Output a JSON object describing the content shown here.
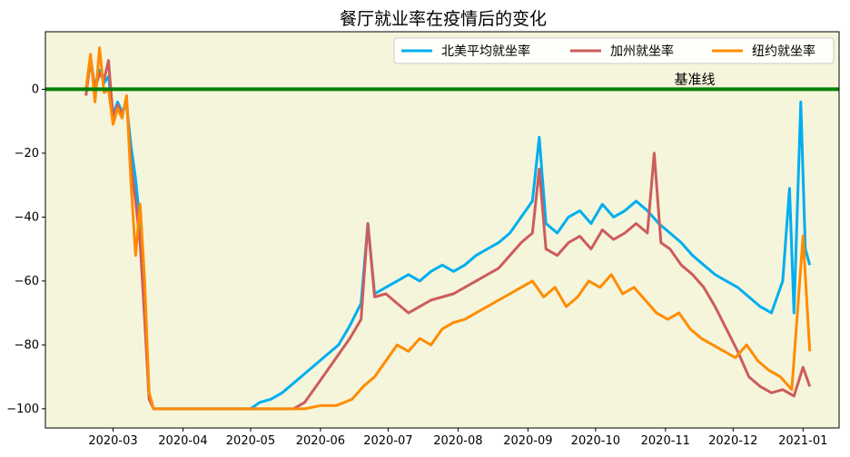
{
  "chart_data": {
    "type": "line",
    "title": "餐厅就业率在疫情后的变化",
    "xlabel": "",
    "ylabel": "",
    "x_range": [
      "2020-01-31",
      "2021-01-17"
    ],
    "ylim": [
      -106,
      18
    ],
    "yticks": [
      0,
      -20,
      -40,
      -60,
      -80,
      -100
    ],
    "ytick_labels": [
      "0",
      "−20",
      "−40",
      "−60",
      "−80",
      "−100"
    ],
    "xticks": [
      "2020-03-01",
      "2020-04-01",
      "2020-05-01",
      "2020-06-01",
      "2020-07-01",
      "2020-08-01",
      "2020-09-01",
      "2020-10-01",
      "2020-11-01",
      "2020-12-01",
      "2021-01-01"
    ],
    "xtick_labels": [
      "2020-03",
      "2020-04",
      "2020-05",
      "2020-06",
      "2020-07",
      "2020-08",
      "2020-09",
      "2020-10",
      "2020-11",
      "2020-12",
      "2021-01"
    ],
    "background": "#f5f5dc",
    "grid": false,
    "legend_position": "top-right",
    "baseline": {
      "value": 0,
      "label": "基准线",
      "color": "#008000"
    },
    "series": [
      {
        "name": "北美平均就坐率",
        "color": "#00aeef",
        "points": [
          [
            "2020-02-18",
            0
          ],
          [
            "2020-02-20",
            8
          ],
          [
            "2020-02-22",
            1
          ],
          [
            "2020-02-24",
            6
          ],
          [
            "2020-02-26",
            2
          ],
          [
            "2020-02-28",
            4
          ],
          [
            "2020-03-01",
            -8
          ],
          [
            "2020-03-03",
            -4
          ],
          [
            "2020-03-05",
            -7
          ],
          [
            "2020-03-07",
            -5
          ],
          [
            "2020-03-09",
            -18
          ],
          [
            "2020-03-11",
            -28
          ],
          [
            "2020-03-13",
            -42
          ],
          [
            "2020-03-15",
            -70
          ],
          [
            "2020-03-17",
            -96
          ],
          [
            "2020-03-19",
            -100
          ],
          [
            "2020-04-15",
            -100
          ],
          [
            "2020-05-01",
            -100
          ],
          [
            "2020-05-05",
            -98
          ],
          [
            "2020-05-10",
            -97
          ],
          [
            "2020-05-15",
            -95
          ],
          [
            "2020-05-20",
            -92
          ],
          [
            "2020-05-25",
            -89
          ],
          [
            "2020-05-30",
            -86
          ],
          [
            "2020-06-04",
            -83
          ],
          [
            "2020-06-09",
            -80
          ],
          [
            "2020-06-14",
            -74
          ],
          [
            "2020-06-19",
            -67
          ],
          [
            "2020-06-22",
            -42
          ],
          [
            "2020-06-25",
            -64
          ],
          [
            "2020-06-30",
            -62
          ],
          [
            "2020-07-05",
            -60
          ],
          [
            "2020-07-10",
            -58
          ],
          [
            "2020-07-15",
            -60
          ],
          [
            "2020-07-20",
            -57
          ],
          [
            "2020-07-25",
            -55
          ],
          [
            "2020-07-30",
            -57
          ],
          [
            "2020-08-04",
            -55
          ],
          [
            "2020-08-09",
            -52
          ],
          [
            "2020-08-14",
            -50
          ],
          [
            "2020-08-19",
            -48
          ],
          [
            "2020-08-24",
            -45
          ],
          [
            "2020-08-29",
            -40
          ],
          [
            "2020-09-03",
            -35
          ],
          [
            "2020-09-06",
            -15
          ],
          [
            "2020-09-09",
            -42
          ],
          [
            "2020-09-14",
            -45
          ],
          [
            "2020-09-19",
            -40
          ],
          [
            "2020-09-24",
            -38
          ],
          [
            "2020-09-29",
            -42
          ],
          [
            "2020-10-04",
            -36
          ],
          [
            "2020-10-09",
            -40
          ],
          [
            "2020-10-14",
            -38
          ],
          [
            "2020-10-19",
            -35
          ],
          [
            "2020-10-24",
            -38
          ],
          [
            "2020-10-29",
            -42
          ],
          [
            "2020-11-03",
            -45
          ],
          [
            "2020-11-08",
            -48
          ],
          [
            "2020-11-13",
            -52
          ],
          [
            "2020-11-18",
            -55
          ],
          [
            "2020-11-23",
            -58
          ],
          [
            "2020-11-28",
            -60
          ],
          [
            "2020-12-03",
            -62
          ],
          [
            "2020-12-08",
            -65
          ],
          [
            "2020-12-13",
            -68
          ],
          [
            "2020-12-18",
            -70
          ],
          [
            "2020-12-23",
            -60
          ],
          [
            "2020-12-26",
            -31
          ],
          [
            "2020-12-28",
            -70
          ],
          [
            "2020-12-31",
            -4
          ],
          [
            "2021-01-02",
            -50
          ],
          [
            "2021-01-04",
            -55
          ]
        ]
      },
      {
        "name": "加州就坐率",
        "color": "#cd5c5c",
        "points": [
          [
            "2020-02-18",
            -2
          ],
          [
            "2020-02-20",
            10
          ],
          [
            "2020-02-22",
            0
          ],
          [
            "2020-02-24",
            5
          ],
          [
            "2020-02-26",
            3
          ],
          [
            "2020-02-28",
            9
          ],
          [
            "2020-03-01",
            -9
          ],
          [
            "2020-03-03",
            -5
          ],
          [
            "2020-03-05",
            -8
          ],
          [
            "2020-03-07",
            -3
          ],
          [
            "2020-03-09",
            -24
          ],
          [
            "2020-03-11",
            -35
          ],
          [
            "2020-03-13",
            -48
          ],
          [
            "2020-03-15",
            -72
          ],
          [
            "2020-03-17",
            -97
          ],
          [
            "2020-03-19",
            -100
          ],
          [
            "2020-05-20",
            -100
          ],
          [
            "2020-05-25",
            -98
          ],
          [
            "2020-05-30",
            -93
          ],
          [
            "2020-06-04",
            -88
          ],
          [
            "2020-06-09",
            -83
          ],
          [
            "2020-06-14",
            -78
          ],
          [
            "2020-06-19",
            -72
          ],
          [
            "2020-06-22",
            -42
          ],
          [
            "2020-06-25",
            -65
          ],
          [
            "2020-06-30",
            -64
          ],
          [
            "2020-07-05",
            -67
          ],
          [
            "2020-07-10",
            -70
          ],
          [
            "2020-07-15",
            -68
          ],
          [
            "2020-07-20",
            -66
          ],
          [
            "2020-07-25",
            -65
          ],
          [
            "2020-07-30",
            -64
          ],
          [
            "2020-08-04",
            -62
          ],
          [
            "2020-08-09",
            -60
          ],
          [
            "2020-08-14",
            -58
          ],
          [
            "2020-08-19",
            -56
          ],
          [
            "2020-08-24",
            -52
          ],
          [
            "2020-08-29",
            -48
          ],
          [
            "2020-09-03",
            -45
          ],
          [
            "2020-09-06",
            -25
          ],
          [
            "2020-09-09",
            -50
          ],
          [
            "2020-09-14",
            -52
          ],
          [
            "2020-09-19",
            -48
          ],
          [
            "2020-09-24",
            -46
          ],
          [
            "2020-09-29",
            -50
          ],
          [
            "2020-10-04",
            -44
          ],
          [
            "2020-10-09",
            -47
          ],
          [
            "2020-10-14",
            -45
          ],
          [
            "2020-10-19",
            -42
          ],
          [
            "2020-10-24",
            -45
          ],
          [
            "2020-10-27",
            -20
          ],
          [
            "2020-10-30",
            -48
          ],
          [
            "2020-11-03",
            -50
          ],
          [
            "2020-11-08",
            -55
          ],
          [
            "2020-11-13",
            -58
          ],
          [
            "2020-11-18",
            -62
          ],
          [
            "2020-11-23",
            -68
          ],
          [
            "2020-11-28",
            -75
          ],
          [
            "2020-12-03",
            -82
          ],
          [
            "2020-12-08",
            -90
          ],
          [
            "2020-12-13",
            -93
          ],
          [
            "2020-12-18",
            -95
          ],
          [
            "2020-12-23",
            -94
          ],
          [
            "2020-12-28",
            -96
          ],
          [
            "2021-01-01",
            -87
          ],
          [
            "2021-01-04",
            -93
          ]
        ]
      },
      {
        "name": "纽约就坐率",
        "color": "#ff8c00",
        "points": [
          [
            "2020-02-18",
            0
          ],
          [
            "2020-02-20",
            11
          ],
          [
            "2020-02-22",
            -4
          ],
          [
            "2020-02-24",
            13
          ],
          [
            "2020-02-26",
            -1
          ],
          [
            "2020-02-28",
            0
          ],
          [
            "2020-03-01",
            -11
          ],
          [
            "2020-03-03",
            -6
          ],
          [
            "2020-03-05",
            -9
          ],
          [
            "2020-03-07",
            -2
          ],
          [
            "2020-03-09",
            -30
          ],
          [
            "2020-03-11",
            -52
          ],
          [
            "2020-03-13",
            -36
          ],
          [
            "2020-03-15",
            -60
          ],
          [
            "2020-03-17",
            -95
          ],
          [
            "2020-03-19",
            -100
          ],
          [
            "2020-05-25",
            -100
          ],
          [
            "2020-06-01",
            -99
          ],
          [
            "2020-06-08",
            -99
          ],
          [
            "2020-06-15",
            -97
          ],
          [
            "2020-06-20",
            -93
          ],
          [
            "2020-06-25",
            -90
          ],
          [
            "2020-06-30",
            -85
          ],
          [
            "2020-07-05",
            -80
          ],
          [
            "2020-07-10",
            -82
          ],
          [
            "2020-07-15",
            -78
          ],
          [
            "2020-07-20",
            -80
          ],
          [
            "2020-07-25",
            -75
          ],
          [
            "2020-07-30",
            -73
          ],
          [
            "2020-08-04",
            -72
          ],
          [
            "2020-08-09",
            -70
          ],
          [
            "2020-08-14",
            -68
          ],
          [
            "2020-08-19",
            -66
          ],
          [
            "2020-08-24",
            -64
          ],
          [
            "2020-08-29",
            -62
          ],
          [
            "2020-09-03",
            -60
          ],
          [
            "2020-09-08",
            -65
          ],
          [
            "2020-09-13",
            -62
          ],
          [
            "2020-09-18",
            -68
          ],
          [
            "2020-09-23",
            -65
          ],
          [
            "2020-09-28",
            -60
          ],
          [
            "2020-10-03",
            -62
          ],
          [
            "2020-10-08",
            -58
          ],
          [
            "2020-10-13",
            -64
          ],
          [
            "2020-10-18",
            -62
          ],
          [
            "2020-10-23",
            -66
          ],
          [
            "2020-10-28",
            -70
          ],
          [
            "2020-11-02",
            -72
          ],
          [
            "2020-11-07",
            -70
          ],
          [
            "2020-11-12",
            -75
          ],
          [
            "2020-11-17",
            -78
          ],
          [
            "2020-11-22",
            -80
          ],
          [
            "2020-11-27",
            -82
          ],
          [
            "2020-12-02",
            -84
          ],
          [
            "2020-12-07",
            -80
          ],
          [
            "2020-12-12",
            -85
          ],
          [
            "2020-12-17",
            -88
          ],
          [
            "2020-12-22",
            -90
          ],
          [
            "2020-12-27",
            -94
          ],
          [
            "2021-01-01",
            -46
          ],
          [
            "2021-01-03",
            -70
          ],
          [
            "2021-01-04",
            -82
          ]
        ]
      }
    ]
  }
}
